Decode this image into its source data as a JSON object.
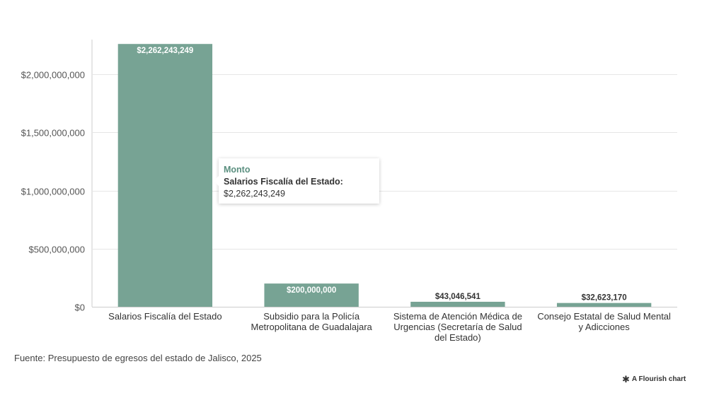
{
  "chart_data": {
    "type": "bar",
    "series": [
      {
        "name": "Monto",
        "color": "#77a394",
        "values": [
          2262243249,
          200000000,
          43046541,
          32623170
        ]
      }
    ],
    "categories": [
      "Salarios Fiscalía del Estado",
      "Subsidio para la Policía Metropolitana de Guadalajara",
      "Sistema de Atención Médica de Urgencias (Secretaría de Salud del Estado)",
      "Consejo Estatal de Salud Mental y Adicciones"
    ],
    "category_lines": [
      [
        "Salarios Fiscalía del Estado"
      ],
      [
        "Subsidio para la Policía",
        "Metropolitana de Guadalajara"
      ],
      [
        "Sistema de Atención Médica de",
        "Urgencias (Secretaría de Salud",
        "del Estado)"
      ],
      [
        "Consejo Estatal de Salud Mental",
        "y Adicciones"
      ]
    ],
    "data_labels": [
      "$2,262,243,249",
      "$200,000,000",
      "$43,046,541",
      "$32,623,170"
    ],
    "y_ticks": [
      0,
      500000000,
      1000000000,
      1500000000,
      2000000000
    ],
    "y_tick_labels": [
      "$0",
      "$500,000,000",
      "$1,000,000,000",
      "$1,500,000,000",
      "$2,000,000,000"
    ],
    "ylim": [
      0,
      2300000000
    ],
    "title": "",
    "xlabel": "",
    "ylabel": "",
    "grid": true,
    "legend": "none"
  },
  "tooltip": {
    "title": "Monto",
    "label": "Salarios Fiscalía del Estado:",
    "value": "$2,262,243,249"
  },
  "footer": {
    "source": "Fuente: Presupuesto de egresos del estado de Jalisco, 2025",
    "credit": "A Flourish chart"
  },
  "colors": {
    "bar": "#77a394",
    "grid": "#e6e6e6",
    "axis": "#cccccc",
    "tooltip_title": "#5a8f7f"
  }
}
